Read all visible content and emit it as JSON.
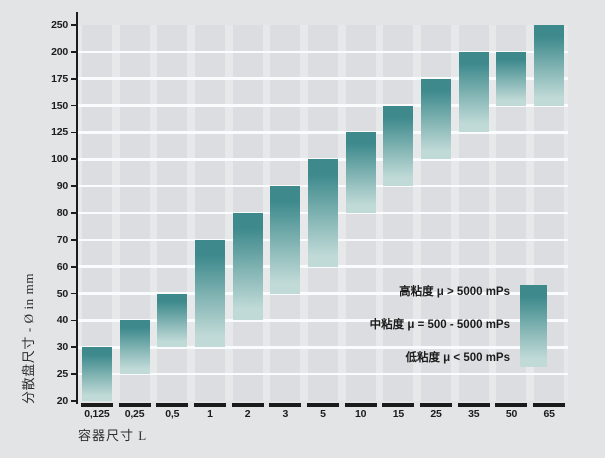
{
  "chart_data": {
    "type": "bar",
    "subtype": "floating-range-bars",
    "title": "",
    "ylabel": "分散盘尺寸 - Ø in mm",
    "xlabel": "容器尺寸 L",
    "y_ticks": [
      20,
      25,
      30,
      40,
      50,
      60,
      70,
      80,
      90,
      100,
      125,
      150,
      175,
      200,
      250
    ],
    "y_scale": "ordinal-equal-spacing",
    "grid": true,
    "categories": [
      "0,125",
      "0,25",
      "0,5",
      "1",
      "2",
      "3",
      "5",
      "10",
      "15",
      "25",
      "35",
      "50",
      "65"
    ],
    "bars": [
      {
        "category": "0,125",
        "low": 20,
        "high": 30
      },
      {
        "category": "0,25",
        "low": 25,
        "high": 40
      },
      {
        "category": "0,5",
        "low": 30,
        "high": 50
      },
      {
        "category": "1",
        "low": 30,
        "high": 70
      },
      {
        "category": "2",
        "low": 40,
        "high": 80
      },
      {
        "category": "3",
        "low": 50,
        "high": 90
      },
      {
        "category": "5",
        "low": 60,
        "high": 100
      },
      {
        "category": "10",
        "low": 80,
        "high": 125
      },
      {
        "category": "15",
        "low": 90,
        "high": 150
      },
      {
        "category": "25",
        "low": 100,
        "high": 175
      },
      {
        "category": "35",
        "low": 125,
        "high": 200
      },
      {
        "category": "50",
        "low": 150,
        "high": 200
      },
      {
        "category": "65",
        "low": 150,
        "high": 250
      }
    ],
    "legend": {
      "position": "bottom-right",
      "items": [
        {
          "label": "高粘度 μ > 5000 mPs",
          "meaning": "high viscosity, top of gradient"
        },
        {
          "label": "中粘度 μ = 500 - 5000 mPs",
          "meaning": "medium viscosity, middle of gradient"
        },
        {
          "label": "低粘度 μ < 500 mPs",
          "meaning": "low viscosity, bottom of gradient"
        }
      ]
    },
    "colors": {
      "bar_gradient_top": "#3d898c",
      "bar_gradient_mid": "#85b6b5",
      "bar_gradient_bottom": "#c0dad7",
      "plot_cell": "#dcdde0",
      "plot_background": "#e7e8ea",
      "page_background": "#e3e4e6",
      "gridline": "#fafbfc",
      "axis": "#1c1c1c",
      "text": "#1c1c1c"
    }
  }
}
